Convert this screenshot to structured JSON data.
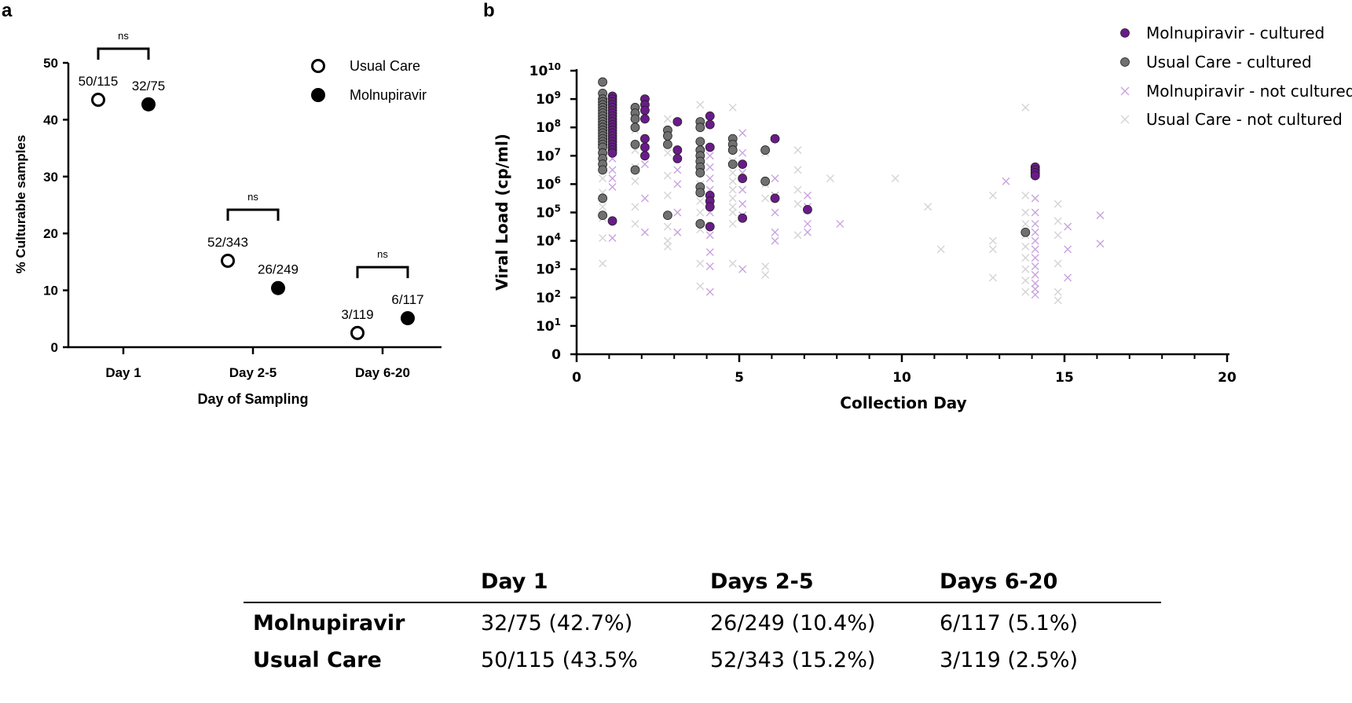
{
  "chart_data": [
    {
      "panel": "a",
      "type": "scatter",
      "xlabel": "Day of Sampling",
      "ylabel": "% Culturable samples",
      "categories": [
        "Day 1",
        "Day 2-5",
        "Day 6-20"
      ],
      "yticks": [
        0,
        10,
        20,
        30,
        40,
        50
      ],
      "ylim": [
        0,
        50
      ],
      "legend": {
        "position": "top-right",
        "entries": [
          "Usual Care",
          "Molnupiravir"
        ]
      },
      "series": [
        {
          "name": "Usual Care",
          "marker": "open-circle",
          "values": [
            43.5,
            15.2,
            2.5
          ],
          "labels": [
            "50/115",
            "52/343",
            "3/119"
          ]
        },
        {
          "name": "Molnupiravir",
          "marker": "filled-circle",
          "values": [
            42.7,
            10.4,
            5.1
          ],
          "labels": [
            "32/75",
            "26/249",
            "6/117"
          ]
        }
      ],
      "annotations": [
        "ns",
        "ns",
        "ns"
      ]
    },
    {
      "panel": "b",
      "type": "scatter",
      "xlabel": "Collection Day",
      "ylabel": "Viral Load (cp/ml)",
      "xlim": [
        0,
        20
      ],
      "xticks": [
        0,
        5,
        10,
        15,
        20
      ],
      "yscale": "log10",
      "ytick_labels": [
        {
          "base": "0",
          "exp": ""
        },
        {
          "base": "10",
          "exp": "1"
        },
        {
          "base": "10",
          "exp": "2"
        },
        {
          "base": "10",
          "exp": "3"
        },
        {
          "base": "10",
          "exp": "4"
        },
        {
          "base": "10",
          "exp": "5"
        },
        {
          "base": "10",
          "exp": "6"
        },
        {
          "base": "10",
          "exp": "7"
        },
        {
          "base": "10",
          "exp": "8"
        },
        {
          "base": "10",
          "exp": "9"
        },
        {
          "base": "10",
          "exp": "10"
        }
      ],
      "legend": {
        "position": "top-right"
      },
      "series": [
        {
          "name": "Molnupiravir - cultured",
          "marker": "circle",
          "color": "#6a1b8a",
          "points": [
            [
              1.1,
              9.1
            ],
            [
              1.1,
              9.0
            ],
            [
              1.1,
              8.9
            ],
            [
              1.1,
              8.8
            ],
            [
              1.1,
              8.7
            ],
            [
              1.1,
              8.6
            ],
            [
              1.1,
              8.5
            ],
            [
              1.1,
              8.4
            ],
            [
              1.1,
              8.3
            ],
            [
              1.1,
              8.2
            ],
            [
              1.1,
              8.1
            ],
            [
              1.1,
              8.0
            ],
            [
              1.1,
              7.9
            ],
            [
              1.1,
              7.8
            ],
            [
              1.1,
              7.7
            ],
            [
              1.1,
              7.6
            ],
            [
              1.1,
              7.5
            ],
            [
              1.1,
              7.4
            ],
            [
              1.1,
              7.3
            ],
            [
              1.1,
              7.2
            ],
            [
              1.1,
              7.1
            ],
            [
              1.1,
              4.7
            ],
            [
              2.1,
              9.0
            ],
            [
              2.1,
              8.8
            ],
            [
              2.1,
              8.6
            ],
            [
              2.1,
              8.3
            ],
            [
              2.1,
              7.6
            ],
            [
              2.1,
              7.3
            ],
            [
              2.1,
              7.0
            ],
            [
              3.1,
              8.2
            ],
            [
              3.1,
              7.2
            ],
            [
              3.1,
              6.9
            ],
            [
              4.1,
              8.4
            ],
            [
              4.1,
              8.1
            ],
            [
              4.1,
              7.3
            ],
            [
              4.1,
              5.6
            ],
            [
              4.1,
              5.4
            ],
            [
              4.1,
              5.2
            ],
            [
              4.1,
              4.5
            ],
            [
              5.1,
              6.7
            ],
            [
              5.1,
              6.2
            ],
            [
              5.1,
              4.8
            ],
            [
              6.1,
              7.6
            ],
            [
              6.1,
              5.5
            ],
            [
              7.1,
              5.1
            ],
            [
              14.1,
              6.6
            ],
            [
              14.1,
              6.5
            ],
            [
              14.1,
              6.4
            ],
            [
              14.1,
              6.3
            ]
          ]
        },
        {
          "name": "Usual Care - cultured",
          "marker": "circle",
          "color": "#707070",
          "points": [
            [
              0.8,
              9.6
            ],
            [
              0.8,
              9.2
            ],
            [
              0.8,
              9.0
            ],
            [
              0.8,
              8.9
            ],
            [
              0.8,
              8.8
            ],
            [
              0.8,
              8.7
            ],
            [
              0.8,
              8.6
            ],
            [
              0.8,
              8.5
            ],
            [
              0.8,
              8.4
            ],
            [
              0.8,
              8.3
            ],
            [
              0.8,
              8.2
            ],
            [
              0.8,
              8.1
            ],
            [
              0.8,
              8.0
            ],
            [
              0.8,
              7.9
            ],
            [
              0.8,
              7.8
            ],
            [
              0.8,
              7.7
            ],
            [
              0.8,
              7.6
            ],
            [
              0.8,
              7.5
            ],
            [
              0.8,
              7.4
            ],
            [
              0.8,
              7.3
            ],
            [
              0.8,
              7.1
            ],
            [
              0.8,
              6.9
            ],
            [
              0.8,
              6.7
            ],
            [
              0.8,
              6.5
            ],
            [
              0.8,
              5.5
            ],
            [
              0.8,
              4.9
            ],
            [
              1.8,
              8.7
            ],
            [
              1.8,
              8.5
            ],
            [
              1.8,
              8.3
            ],
            [
              1.8,
              8.0
            ],
            [
              1.8,
              7.4
            ],
            [
              1.8,
              6.5
            ],
            [
              2.8,
              7.9
            ],
            [
              2.8,
              7.7
            ],
            [
              2.8,
              7.4
            ],
            [
              2.8,
              4.9
            ],
            [
              3.8,
              8.2
            ],
            [
              3.8,
              8.0
            ],
            [
              3.8,
              7.5
            ],
            [
              3.8,
              7.2
            ],
            [
              3.8,
              7.0
            ],
            [
              3.8,
              6.8
            ],
            [
              3.8,
              6.6
            ],
            [
              3.8,
              6.4
            ],
            [
              3.8,
              5.9
            ],
            [
              3.8,
              5.7
            ],
            [
              3.8,
              4.6
            ],
            [
              4.8,
              7.6
            ],
            [
              4.8,
              7.4
            ],
            [
              4.8,
              7.2
            ],
            [
              4.8,
              6.7
            ],
            [
              5.8,
              7.2
            ],
            [
              5.8,
              6.1
            ],
            [
              13.8,
              4.3
            ]
          ]
        },
        {
          "name": "Molnupiravir - not cultured",
          "marker": "x",
          "color": "#c9a3de",
          "points": [
            [
              1.1,
              6.9
            ],
            [
              1.1,
              6.5
            ],
            [
              1.1,
              6.2
            ],
            [
              1.1,
              5.9
            ],
            [
              1.1,
              4.1
            ],
            [
              2.1,
              6.7
            ],
            [
              2.1,
              5.5
            ],
            [
              2.1,
              4.3
            ],
            [
              3.1,
              6.5
            ],
            [
              3.1,
              6.0
            ],
            [
              3.1,
              5.0
            ],
            [
              3.1,
              4.3
            ],
            [
              4.1,
              7.0
            ],
            [
              4.1,
              6.6
            ],
            [
              4.1,
              6.2
            ],
            [
              4.1,
              5.8
            ],
            [
              4.1,
              5.0
            ],
            [
              4.1,
              4.2
            ],
            [
              4.1,
              3.6
            ],
            [
              4.1,
              3.1
            ],
            [
              4.1,
              2.2
            ],
            [
              5.1,
              7.8
            ],
            [
              5.1,
              7.1
            ],
            [
              5.1,
              6.4
            ],
            [
              5.1,
              5.8
            ],
            [
              5.1,
              5.3
            ],
            [
              5.1,
              4.9
            ],
            [
              5.1,
              3.0
            ],
            [
              6.1,
              6.2
            ],
            [
              6.1,
              5.6
            ],
            [
              6.1,
              5.0
            ],
            [
              6.1,
              4.3
            ],
            [
              6.1,
              4.0
            ],
            [
              7.1,
              5.6
            ],
            [
              7.1,
              5.2
            ],
            [
              7.1,
              4.6
            ],
            [
              7.1,
              4.3
            ],
            [
              8.1,
              4.6
            ],
            [
              13.2,
              6.1
            ],
            [
              14.1,
              5.5
            ],
            [
              14.1,
              5.0
            ],
            [
              14.1,
              4.6
            ],
            [
              14.1,
              4.3
            ],
            [
              14.1,
              4.0
            ],
            [
              14.1,
              3.7
            ],
            [
              14.1,
              3.4
            ],
            [
              14.1,
              3.1
            ],
            [
              14.1,
              2.8
            ],
            [
              14.1,
              2.5
            ],
            [
              14.1,
              2.3
            ],
            [
              14.1,
              2.1
            ],
            [
              15.1,
              4.5
            ],
            [
              15.1,
              3.7
            ],
            [
              15.1,
              2.7
            ],
            [
              16.1,
              4.9
            ],
            [
              16.1,
              3.9
            ]
          ]
        },
        {
          "name": "Usual Care - not cultured",
          "marker": "x",
          "color": "#d4d4d4",
          "points": [
            [
              0.8,
              8.1
            ],
            [
              0.8,
              7.3
            ],
            [
              0.8,
              6.8
            ],
            [
              0.8,
              6.2
            ],
            [
              0.8,
              5.7
            ],
            [
              0.8,
              5.2
            ],
            [
              0.8,
              4.8
            ],
            [
              0.8,
              4.1
            ],
            [
              0.8,
              3.2
            ],
            [
              1.8,
              7.9
            ],
            [
              1.8,
              7.2
            ],
            [
              1.8,
              6.6
            ],
            [
              1.8,
              6.1
            ],
            [
              1.8,
              5.2
            ],
            [
              1.8,
              4.6
            ],
            [
              2.8,
              8.3
            ],
            [
              2.8,
              7.1
            ],
            [
              2.8,
              6.3
            ],
            [
              2.8,
              5.6
            ],
            [
              2.8,
              4.5
            ],
            [
              2.8,
              4.0
            ],
            [
              2.8,
              3.8
            ],
            [
              3.8,
              8.8
            ],
            [
              3.8,
              6.6
            ],
            [
              3.8,
              6.0
            ],
            [
              3.8,
              5.4
            ],
            [
              3.8,
              5.0
            ],
            [
              3.8,
              4.4
            ],
            [
              3.8,
              3.2
            ],
            [
              3.8,
              2.4
            ],
            [
              4.8,
              8.7
            ],
            [
              4.8,
              6.8
            ],
            [
              4.8,
              6.4
            ],
            [
              4.8,
              6.1
            ],
            [
              4.8,
              5.8
            ],
            [
              4.8,
              5.5
            ],
            [
              4.8,
              5.2
            ],
            [
              4.8,
              5.0
            ],
            [
              4.8,
              4.6
            ],
            [
              4.8,
              3.2
            ],
            [
              5.8,
              7.1
            ],
            [
              5.8,
              6.0
            ],
            [
              5.8,
              5.5
            ],
            [
              5.8,
              3.1
            ],
            [
              5.8,
              2.8
            ],
            [
              6.8,
              7.2
            ],
            [
              6.8,
              6.5
            ],
            [
              6.8,
              5.8
            ],
            [
              6.8,
              5.3
            ],
            [
              6.8,
              4.2
            ],
            [
              7.8,
              6.2
            ],
            [
              9.8,
              6.2
            ],
            [
              10.8,
              5.2
            ],
            [
              11.2,
              3.7
            ],
            [
              12.8,
              5.6
            ],
            [
              12.8,
              4.0
            ],
            [
              12.8,
              3.7
            ],
            [
              12.8,
              2.7
            ],
            [
              13.8,
              8.7
            ],
            [
              13.8,
              5.6
            ],
            [
              13.8,
              5.0
            ],
            [
              13.8,
              4.6
            ],
            [
              13.8,
              4.2
            ],
            [
              13.8,
              3.8
            ],
            [
              13.8,
              3.4
            ],
            [
              13.8,
              3.0
            ],
            [
              13.8,
              2.6
            ],
            [
              13.8,
              2.2
            ],
            [
              14.8,
              5.3
            ],
            [
              14.8,
              4.7
            ],
            [
              14.8,
              4.2
            ],
            [
              14.8,
              3.2
            ],
            [
              14.8,
              2.2
            ],
            [
              14.8,
              1.9
            ]
          ]
        }
      ]
    }
  ],
  "table": {
    "headers": [
      "",
      "Day 1",
      "Days 2-5",
      "Days 6-20"
    ],
    "rows": [
      {
        "label": "Molnupiravir",
        "cells": [
          "32/75 (42.7%)",
          "26/249 (10.4%)",
          "6/117 (5.1%)"
        ]
      },
      {
        "label": "Usual Care",
        "cells": [
          "50/115 (43.5%",
          "52/343 (15.2%)",
          "3/119 (2.5%)"
        ]
      }
    ]
  },
  "panel_labels": {
    "a": "a",
    "b": "b"
  }
}
